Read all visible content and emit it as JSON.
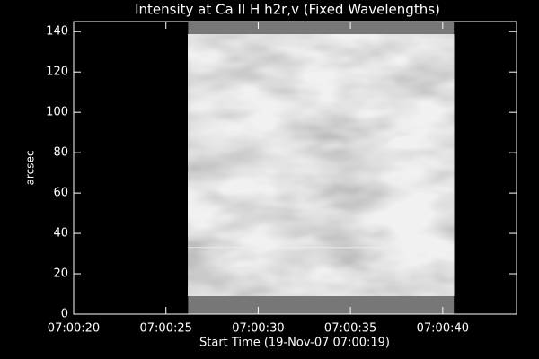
{
  "chart_data": {
    "type": "image",
    "title": "Intensity at Ca II H h2r,v (Fixed Wavelengths)",
    "x_label": "Start Time (19-Nov-07 07:00:19)",
    "y_label": "arcsec",
    "xlim": [
      20,
      44
    ],
    "xticks": [
      {
        "value": 20,
        "label": "07:00:20"
      },
      {
        "value": 25,
        "label": "07:00:25"
      },
      {
        "value": 30,
        "label": "07:00:30"
      },
      {
        "value": 35,
        "label": "07:00:35"
      },
      {
        "value": 40,
        "label": "07:00:40"
      }
    ],
    "ylim": [
      0,
      145
    ],
    "yticks": [
      0,
      20,
      40,
      60,
      80,
      100,
      120,
      140
    ],
    "image_extent": {
      "x": [
        26.2,
        40.6
      ],
      "y": [
        0,
        145
      ]
    },
    "color": "#ffffff"
  }
}
